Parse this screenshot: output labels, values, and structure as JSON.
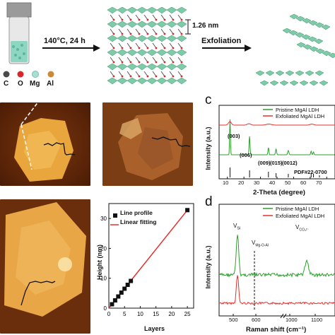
{
  "synthesis": {
    "condition": "140°C, 24 h",
    "step2": "Exfoliation",
    "spacing": "1.26 nm",
    "legend": [
      {
        "symbol": "C",
        "color": "#4a4a4a"
      },
      {
        "symbol": "O",
        "color": "#d9262b"
      },
      {
        "symbol": "Mg",
        "color": "#a8e0d0"
      },
      {
        "symbol": "Al",
        "color": "#c98a3a"
      }
    ]
  },
  "panel_c": {
    "letter": "c",
    "legend": [
      "Pristine MgAl LDH",
      "Exfoliated MgAl LDH"
    ],
    "ylabel": "Intensity (a.u.)",
    "xlabel": "2-Theta (degree)",
    "xticks": [
      "10",
      "20",
      "30",
      "40",
      "50",
      "60",
      "70"
    ],
    "peaks": [
      "(003)",
      "(006)",
      "(009)",
      "(015)",
      "(0012)"
    ],
    "reference": "PDF#22-0700"
  },
  "panel_d": {
    "letter": "d",
    "legend": [
      "Pristine MgAl LDH",
      "Exfoliated MgAl LDH"
    ],
    "ylabel": "Intensity (a.u.)",
    "xlabel": "Raman shift (cm⁻¹)",
    "xticks": [
      "500",
      "600",
      "1000",
      "1100"
    ],
    "ann_si": "V",
    "ann_si_sub": "Si",
    "ann_mg": "V",
    "ann_mg_sub": "Mg-O-Al",
    "ann_co": "V",
    "ann_co_sub": "CO₃²⁻"
  },
  "chart_data": {
    "type": "scatter",
    "xlabel": "Layers",
    "ylabel": "Height (nm)",
    "xlim": [
      0,
      27
    ],
    "ylim": [
      0,
      35
    ],
    "xticks": [
      0,
      5,
      10,
      15,
      20,
      25
    ],
    "yticks": [
      0,
      10,
      20,
      30
    ],
    "series": [
      {
        "name": "Line profile",
        "x": [
          1,
          2,
          3,
          4,
          5,
          6,
          7,
          25
        ],
        "y": [
          1.3,
          2.6,
          3.9,
          5.2,
          6.5,
          7.8,
          9.1,
          32.8
        ]
      },
      {
        "name": "Linear fitting",
        "x": [
          0,
          25
        ],
        "y": [
          0,
          32.8
        ]
      }
    ]
  },
  "colors": {
    "green": "#2ca02c",
    "red": "#e3312d",
    "octahedra": "#7ecba8"
  }
}
